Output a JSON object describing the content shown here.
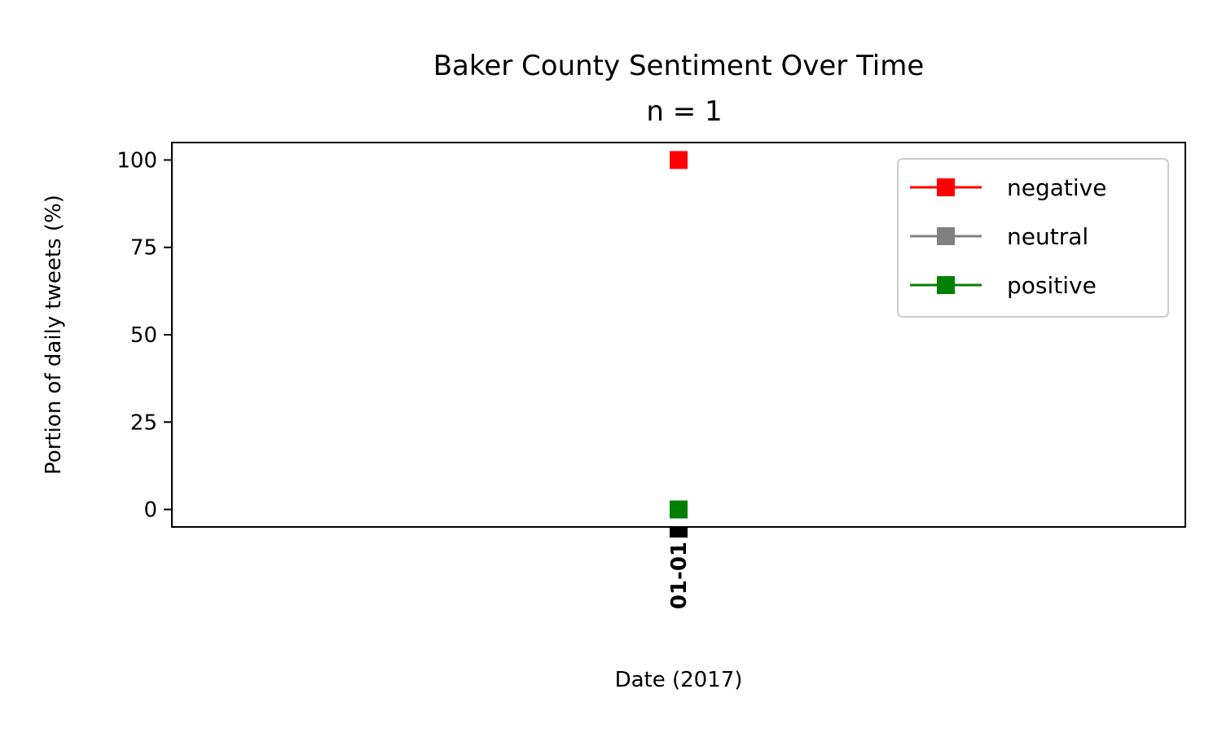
{
  "chart_data": {
    "type": "line",
    "title": "Baker County Sentiment Over Time",
    "subtitle": "n = 1",
    "xlabel": "Date (2017)",
    "ylabel": "Portion of daily tweets (%)",
    "ylim": [
      -5,
      105
    ],
    "yticks": [
      0,
      25,
      50,
      75,
      100
    ],
    "x": [
      "01-01"
    ],
    "series": [
      {
        "name": "negative",
        "color": "#ff0000",
        "marker": "square",
        "values": [
          100
        ]
      },
      {
        "name": "neutral",
        "color": "#808080",
        "marker": "square",
        "values": [
          0
        ]
      },
      {
        "name": "positive",
        "color": "#008000",
        "marker": "square",
        "values": [
          0
        ]
      }
    ],
    "grid": false,
    "legend_position": "top-right"
  }
}
